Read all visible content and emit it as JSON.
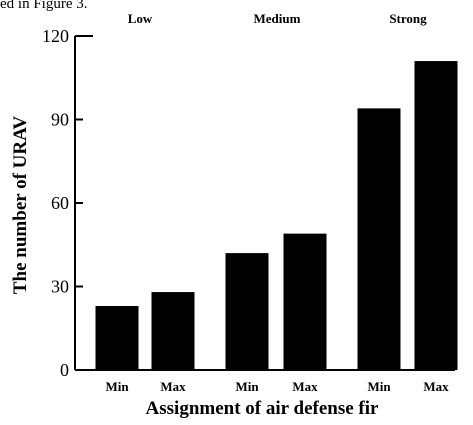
{
  "caption_fragment": "ed in Figure 3.",
  "chart_data": {
    "type": "bar",
    "title": "",
    "xlabel": "Assignment of air defense fir",
    "ylabel": "The number of URAV",
    "ylim": [
      0,
      120
    ],
    "yticks": [
      0,
      30,
      60,
      90,
      120
    ],
    "groups": [
      "Low",
      "Medium",
      "Strong"
    ],
    "categories": [
      "Min",
      "Max",
      "Min",
      "Max",
      "Min",
      "Max"
    ],
    "values": [
      23,
      28,
      42,
      49,
      94,
      111
    ],
    "bar_color": "#000000",
    "grid": false
  }
}
